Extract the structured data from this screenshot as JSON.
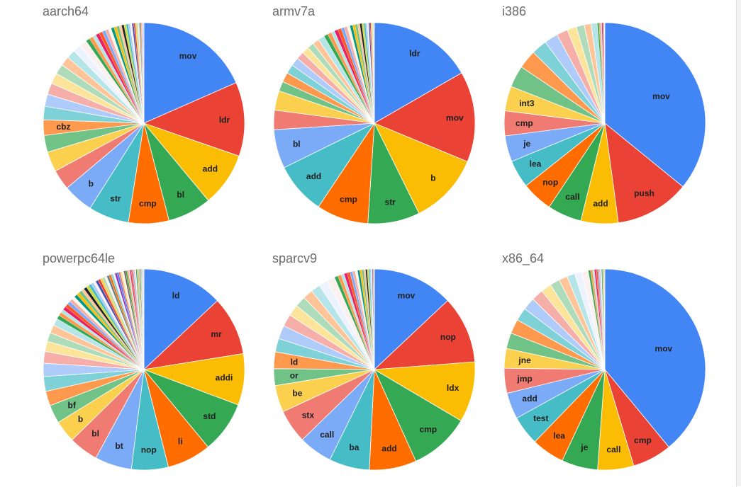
{
  "colors": {
    "palette": [
      "#4285F4",
      "#EA4335",
      "#FBBC04",
      "#34A853",
      "#FF6D01",
      "#46BDC6",
      "#7BAAF7",
      "#F07B72",
      "#FCD04F",
      "#71C287",
      "#FF994D",
      "#7ED1D7",
      "#AECBFA",
      "#F6AEA9",
      "#FDE49B",
      "#AEDCBA",
      "#FFC599",
      "#B5E5E8",
      "#ECF3FE",
      "#FDF1F0",
      "#FEF8E6",
      "#EEF7F1",
      "#FFF4EC",
      "#202124",
      "#E91E63",
      "#9C27B0",
      "#3F51B5",
      "#009688",
      "#795548",
      "#607D8B",
      "#CDDC39",
      "#FF5722"
    ],
    "title": "#6b6b6b",
    "label": "#202020"
  },
  "chart_data": [
    {
      "type": "pie",
      "title": "aarch64",
      "slices": [
        {
          "label": "mov",
          "value": 17
        },
        {
          "label": "ldr",
          "value": 11
        },
        {
          "label": "add",
          "value": 8
        },
        {
          "label": "bl",
          "value": 6.5
        },
        {
          "label": "cmp",
          "value": 6
        },
        {
          "label": "str",
          "value": 6
        },
        {
          "label": "b",
          "value": 4.5
        },
        {
          "label": "",
          "value": 3
        },
        {
          "label": "",
          "value": 3
        },
        {
          "label": "",
          "value": 2.5
        },
        {
          "label": "cbz",
          "value": 2.3
        },
        {
          "label": "",
          "value": 2
        },
        {
          "label": "",
          "value": 1.8
        },
        {
          "label": "",
          "value": 1.7
        },
        {
          "label": "",
          "value": 1.6
        },
        {
          "label": "",
          "value": 1.5
        },
        {
          "label": "",
          "value": 1.4
        },
        {
          "label": "",
          "value": 1.3
        },
        {
          "label": "",
          "value": 1.2
        },
        {
          "label": "",
          "value": 1.1
        }
      ],
      "tail_count": 30,
      "tail_total": 9
    },
    {
      "type": "pie",
      "title": "armv7a",
      "slices": [
        {
          "label": "ldr",
          "value": 16
        },
        {
          "label": "mov",
          "value": 14
        },
        {
          "label": "b",
          "value": 11
        },
        {
          "label": "str",
          "value": 8
        },
        {
          "label": "cmp",
          "value": 8
        },
        {
          "label": "add",
          "value": 8
        },
        {
          "label": "bl",
          "value": 6
        },
        {
          "label": "",
          "value": 3
        },
        {
          "label": "",
          "value": 3
        },
        {
          "label": "",
          "value": 1.5
        },
        {
          "label": "",
          "value": 1.5
        },
        {
          "label": "",
          "value": 1.4
        },
        {
          "label": "",
          "value": 1.3
        },
        {
          "label": "",
          "value": 1.2
        },
        {
          "label": "",
          "value": 1.1
        },
        {
          "label": "",
          "value": 1
        },
        {
          "label": "",
          "value": 1
        },
        {
          "label": "",
          "value": 1
        }
      ],
      "tail_count": 25,
      "tail_total": 8
    },
    {
      "type": "pie",
      "title": "i386",
      "slices": [
        {
          "label": "mov",
          "value": 36
        },
        {
          "label": "push",
          "value": 12
        },
        {
          "label": "add",
          "value": 6
        },
        {
          "label": "call",
          "value": 5.5
        },
        {
          "label": "nop",
          "value": 5
        },
        {
          "label": "lea",
          "value": 4.5
        },
        {
          "label": "je",
          "value": 4.2
        },
        {
          "label": "cmp",
          "value": 4
        },
        {
          "label": "int3",
          "value": 4
        },
        {
          "label": "",
          "value": 3.5
        },
        {
          "label": "",
          "value": 3
        },
        {
          "label": "",
          "value": 2.5
        },
        {
          "label": "",
          "value": 2.2
        },
        {
          "label": "",
          "value": 1.8
        },
        {
          "label": "",
          "value": 1.5
        },
        {
          "label": "",
          "value": 1.3
        },
        {
          "label": "",
          "value": 1.1
        },
        {
          "label": "",
          "value": 1
        }
      ],
      "tail_count": 8,
      "tail_total": 1.2
    },
    {
      "type": "pie",
      "title": "powerpc64le",
      "slices": [
        {
          "label": "ld",
          "value": 11
        },
        {
          "label": "mr",
          "value": 8
        },
        {
          "label": "addi",
          "value": 7
        },
        {
          "label": "std",
          "value": 7
        },
        {
          "label": "li",
          "value": 6
        },
        {
          "label": "nop",
          "value": 5
        },
        {
          "label": "bt",
          "value": 5
        },
        {
          "label": "bl",
          "value": 4
        },
        {
          "label": "b",
          "value": 3
        },
        {
          "label": "bf",
          "value": 2.5
        },
        {
          "label": "",
          "value": 2
        },
        {
          "label": "",
          "value": 2
        },
        {
          "label": "",
          "value": 1.8
        },
        {
          "label": "",
          "value": 1.6
        },
        {
          "label": "",
          "value": 1.4
        },
        {
          "label": "",
          "value": 1.2
        },
        {
          "label": "",
          "value": 1.1
        },
        {
          "label": "",
          "value": 1
        }
      ],
      "tail_count": 55,
      "tail_total": 14
    },
    {
      "type": "pie",
      "title": "sparcv9",
      "slices": [
        {
          "label": "mov",
          "value": 12
        },
        {
          "label": "nop",
          "value": 10
        },
        {
          "label": "ldx",
          "value": 9
        },
        {
          "label": "cmp",
          "value": 9
        },
        {
          "label": "add",
          "value": 7
        },
        {
          "label": "ba",
          "value": 6
        },
        {
          "label": "call",
          "value": 5
        },
        {
          "label": "stx",
          "value": 5
        },
        {
          "label": "be",
          "value": 4
        },
        {
          "label": "or",
          "value": 2.5
        },
        {
          "label": "ld",
          "value": 2.5
        },
        {
          "label": "",
          "value": 2
        },
        {
          "label": "",
          "value": 2
        },
        {
          "label": "",
          "value": 1.8
        },
        {
          "label": "",
          "value": 1.7
        },
        {
          "label": "",
          "value": 1.6
        },
        {
          "label": "",
          "value": 1.5
        },
        {
          "label": "",
          "value": 1.4
        },
        {
          "label": "",
          "value": 1.3
        },
        {
          "label": "",
          "value": 1.2
        }
      ],
      "tail_count": 22,
      "tail_total": 6
    },
    {
      "type": "pie",
      "title": "x86_64",
      "slices": [
        {
          "label": "mov",
          "value": 37
        },
        {
          "label": "cmp",
          "value": 6
        },
        {
          "label": "call",
          "value": 5.5
        },
        {
          "label": "je",
          "value": 5.5
        },
        {
          "label": "lea",
          "value": 5
        },
        {
          "label": "test",
          "value": 4.5
        },
        {
          "label": "add",
          "value": 4
        },
        {
          "label": "jmp",
          "value": 3.8
        },
        {
          "label": "jne",
          "value": 3
        },
        {
          "label": "",
          "value": 2.4
        },
        {
          "label": "",
          "value": 2.2
        },
        {
          "label": "",
          "value": 2
        },
        {
          "label": "",
          "value": 1.9
        },
        {
          "label": "",
          "value": 1.8
        },
        {
          "label": "",
          "value": 1.6
        },
        {
          "label": "",
          "value": 1.5
        },
        {
          "label": "",
          "value": 1.3
        },
        {
          "label": "",
          "value": 1.2
        },
        {
          "label": "",
          "value": 1.1
        },
        {
          "label": "",
          "value": 1
        }
      ],
      "tail_count": 14,
      "tail_total": 2.5
    }
  ]
}
